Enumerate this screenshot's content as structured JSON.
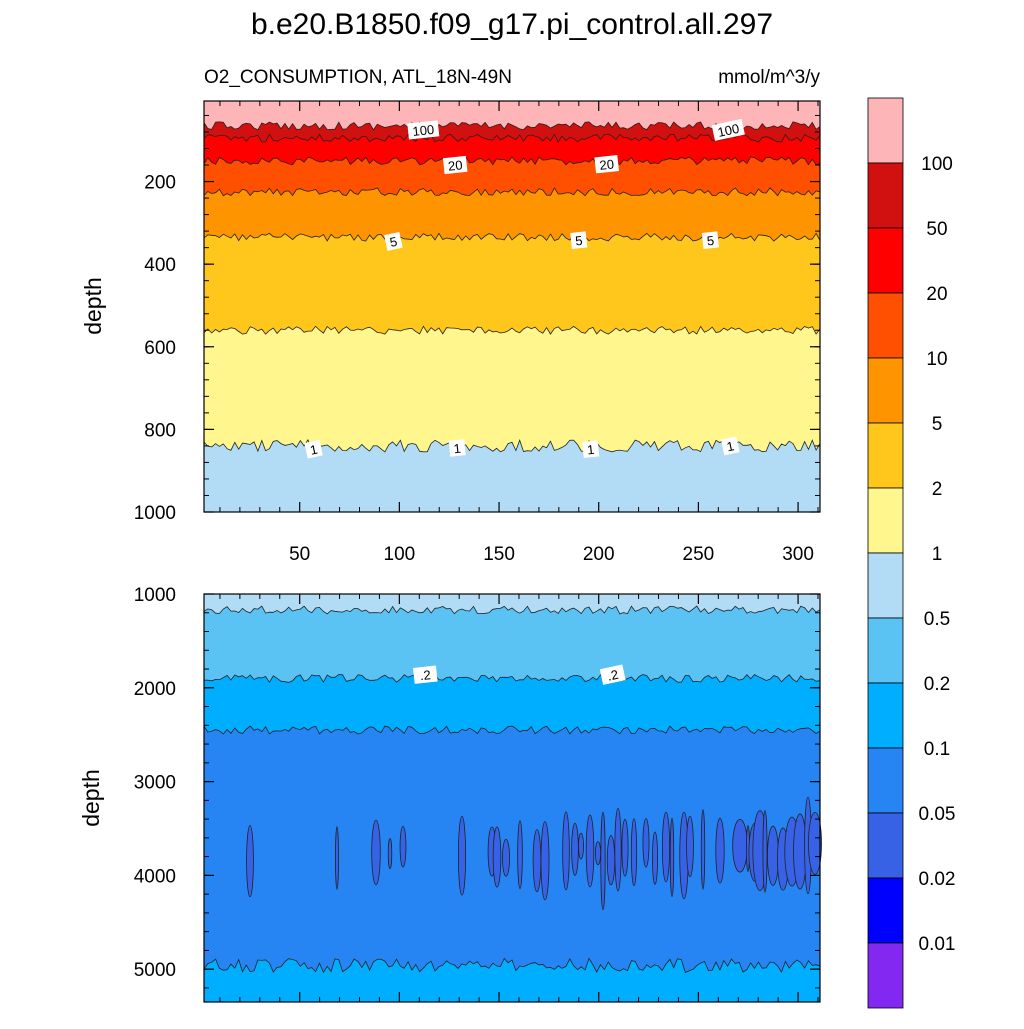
{
  "title": "b.e20.B1850.f09_g17.pi_control.all.297",
  "subtitle_left": "O2_CONSUMPTION, ATL_18N-49N",
  "subtitle_right": "mmol/m^3/y",
  "colorbar": {
    "levels": [
      "100",
      "50",
      "20",
      "10",
      "5",
      "2",
      "1",
      "0.5",
      "0.2",
      "0.1",
      "0.05",
      "0.02",
      "0.01"
    ],
    "colors_top_to_bottom": [
      "#fdb5b8",
      "#d0110f",
      "#fe0000",
      "#fe5000",
      "#fe9500",
      "#ffc71c",
      "#fff68e",
      "#b2dcf5",
      "#5ac3f4",
      "#00aeff",
      "#2685f2",
      "#3862e6",
      "#0000fe",
      "#8228f0"
    ]
  },
  "chart_data": [
    {
      "type": "heatmap",
      "name": "upper",
      "xlim": [
        2,
        311
      ],
      "ylim": [
        1000,
        5
      ],
      "ylabel": "depth",
      "xticks": [
        "50",
        "100",
        "150",
        "200",
        "250",
        "300"
      ],
      "yticks": [
        "200",
        "400",
        "600",
        "800",
        "1000"
      ],
      "contour_boundaries": [
        {
          "value": 100,
          "depth": 65
        },
        {
          "value": 50,
          "depth": 95
        },
        {
          "value": 20,
          "depth": 150
        },
        {
          "value": 10,
          "depth": 225
        },
        {
          "value": 5,
          "depth": 335
        },
        {
          "value": 2,
          "depth": 560
        },
        {
          "value": 1,
          "depth": 840
        }
      ],
      "contour_labels": [
        {
          "text": "100",
          "x": 112,
          "depth": 75
        },
        {
          "text": "100",
          "x": 265,
          "depth": 75
        },
        {
          "text": "20",
          "x": 128,
          "depth": 160
        },
        {
          "text": "20",
          "x": 204,
          "depth": 158
        },
        {
          "text": "5",
          "x": 97,
          "depth": 345
        },
        {
          "text": "5",
          "x": 190,
          "depth": 342
        },
        {
          "text": "5",
          "x": 256,
          "depth": 342
        },
        {
          "text": "1",
          "x": 57,
          "depth": 848
        },
        {
          "text": "1",
          "x": 129,
          "depth": 845
        },
        {
          "text": "1",
          "x": 196,
          "depth": 848
        },
        {
          "text": "1",
          "x": 266,
          "depth": 840
        }
      ]
    },
    {
      "type": "heatmap",
      "name": "lower",
      "xlim": [
        2,
        311
      ],
      "ylim": [
        5350,
        1000
      ],
      "ylabel": "depth",
      "yticks": [
        "1000",
        "2000",
        "3000",
        "4000",
        "5000"
      ],
      "contour_boundaries": [
        {
          "value": 0.5,
          "depth": 1170
        },
        {
          "value": 0.2,
          "depth": 1900
        },
        {
          "value": 0.1,
          "depth": 2450
        },
        {
          "value": 0.1,
          "depth": 4960
        }
      ],
      "contour_labels": [
        {
          "text": ".2",
          "x": 113,
          "depth": 1860
        },
        {
          "text": ".2",
          "x": 207,
          "depth": 1860
        }
      ]
    }
  ]
}
